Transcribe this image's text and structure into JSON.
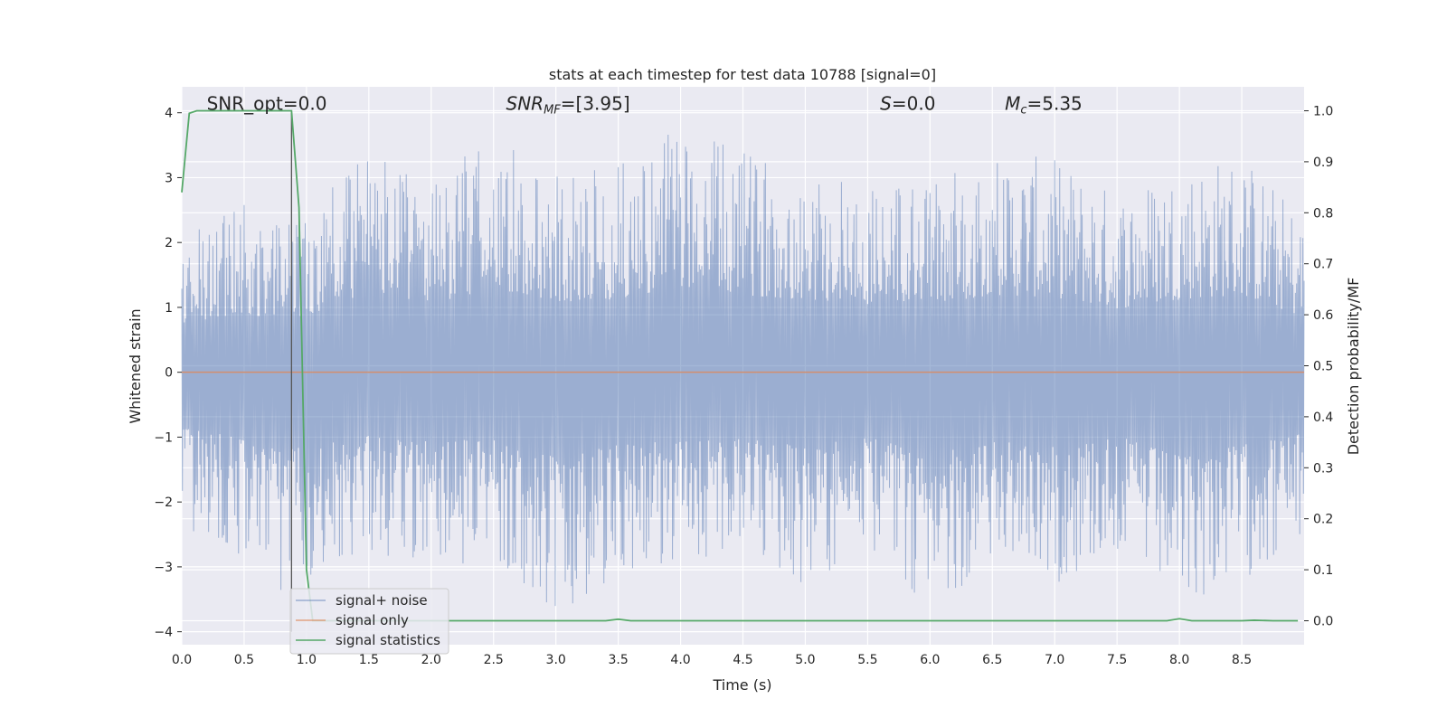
{
  "chart_data": {
    "type": "line",
    "title": "stats at each timestep for test data 10788 [signal=0]",
    "xlabel": "Time (s)",
    "ylabel": "Whitened strain",
    "y2label": "Detection probability/MF",
    "xlim": [
      0.0,
      9.0
    ],
    "ylim": [
      -4.2,
      4.4
    ],
    "y2lim": [
      -0.047,
      1.047
    ],
    "xticks": [
      0.0,
      0.5,
      1.0,
      1.5,
      2.0,
      2.5,
      3.0,
      3.5,
      4.0,
      4.5,
      5.0,
      5.5,
      6.0,
      6.5,
      7.0,
      7.5,
      8.0,
      8.5
    ],
    "xtick_labels": [
      "0.0",
      "0.5",
      "1.0",
      "1.5",
      "2.0",
      "2.5",
      "3.0",
      "3.5",
      "4.0",
      "4.5",
      "5.0",
      "5.5",
      "6.0",
      "6.5",
      "7.0",
      "7.5",
      "8.0",
      "8.5"
    ],
    "yticks": [
      4,
      3,
      2,
      1,
      0,
      -1,
      -2,
      -3,
      -4
    ],
    "ytick_labels": [
      "4",
      "3",
      "2",
      "1",
      "0",
      "−1",
      "−2",
      "−3",
      "−4"
    ],
    "y2ticks": [
      1.0,
      0.9,
      0.8,
      0.7,
      0.6,
      0.5,
      0.4,
      0.3,
      0.2,
      0.1,
      0.0
    ],
    "y2tick_labels": [
      "1.0",
      "0.9",
      "0.8",
      "0.7",
      "0.6",
      "0.5",
      "0.4",
      "0.3",
      "0.2",
      "0.1",
      "0.0"
    ],
    "grid": true,
    "legend_position": "bottom-left",
    "annotations": [
      {
        "text": "SNR_opt=0.0",
        "x": 0.2,
        "y": 4.1
      },
      {
        "text": "SNR_MF=[3.95]",
        "x": 2.6,
        "y": 4.1
      },
      {
        "text": "S=0.0",
        "x": 5.6,
        "y": 4.1
      },
      {
        "text": "M_c=5.35",
        "x": 6.6,
        "y": 4.1
      }
    ],
    "vline": {
      "x": 0.88,
      "ymin": -4.0,
      "ymax": 4.0
    },
    "series": [
      {
        "name": "signal+ noise",
        "color": "#4c72b0",
        "axis": "left",
        "x": [
          0.0,
          0.25,
          0.5,
          0.75,
          1.0,
          1.5,
          2.0,
          2.5,
          3.0,
          3.5,
          4.0,
          4.5,
          5.0,
          5.5,
          6.0,
          6.5,
          7.0,
          7.5,
          8.0,
          8.5,
          9.0
        ],
        "y_max": [
          2.1,
          2.4,
          2.6,
          2.3,
          2.5,
          3.5,
          3.0,
          3.7,
          3.1,
          3.2,
          3.8,
          3.4,
          3.2,
          3.0,
          3.0,
          3.4,
          3.3,
          2.8,
          3.2,
          3.4,
          2.4
        ],
        "y_min": [
          -2.4,
          -2.6,
          -3.0,
          -3.4,
          -3.3,
          -2.8,
          -3.0,
          -2.9,
          -3.7,
          -3.2,
          -3.0,
          -2.8,
          -3.3,
          -2.8,
          -3.7,
          -2.9,
          -3.3,
          -2.8,
          -3.7,
          -3.2,
          -2.7
        ]
      },
      {
        "name": "signal only",
        "color": "#dd8452",
        "axis": "left",
        "x": [
          0.0,
          9.0
        ],
        "y": [
          0.0,
          0.0
        ]
      },
      {
        "name": "signal statistics",
        "color": "#55a868",
        "axis": "right",
        "x": [
          0.0,
          0.06,
          0.12,
          0.3,
          0.6,
          0.85,
          0.88,
          0.94,
          1.0,
          1.05,
          2.0,
          3.0,
          3.4,
          3.5,
          3.6,
          5.0,
          6.0,
          7.0,
          7.9,
          8.0,
          8.1,
          8.5,
          8.6,
          8.75,
          8.95
        ],
        "y": [
          0.84,
          0.995,
          1.0,
          1.0,
          1.0,
          1.0,
          1.0,
          0.81,
          0.1,
          0.0,
          0.0,
          0.0,
          0.0,
          0.003,
          0.0,
          0.0,
          0.0,
          0.0,
          0.0,
          0.004,
          0.0,
          0.0,
          0.001,
          0.0,
          0.0
        ]
      }
    ]
  }
}
